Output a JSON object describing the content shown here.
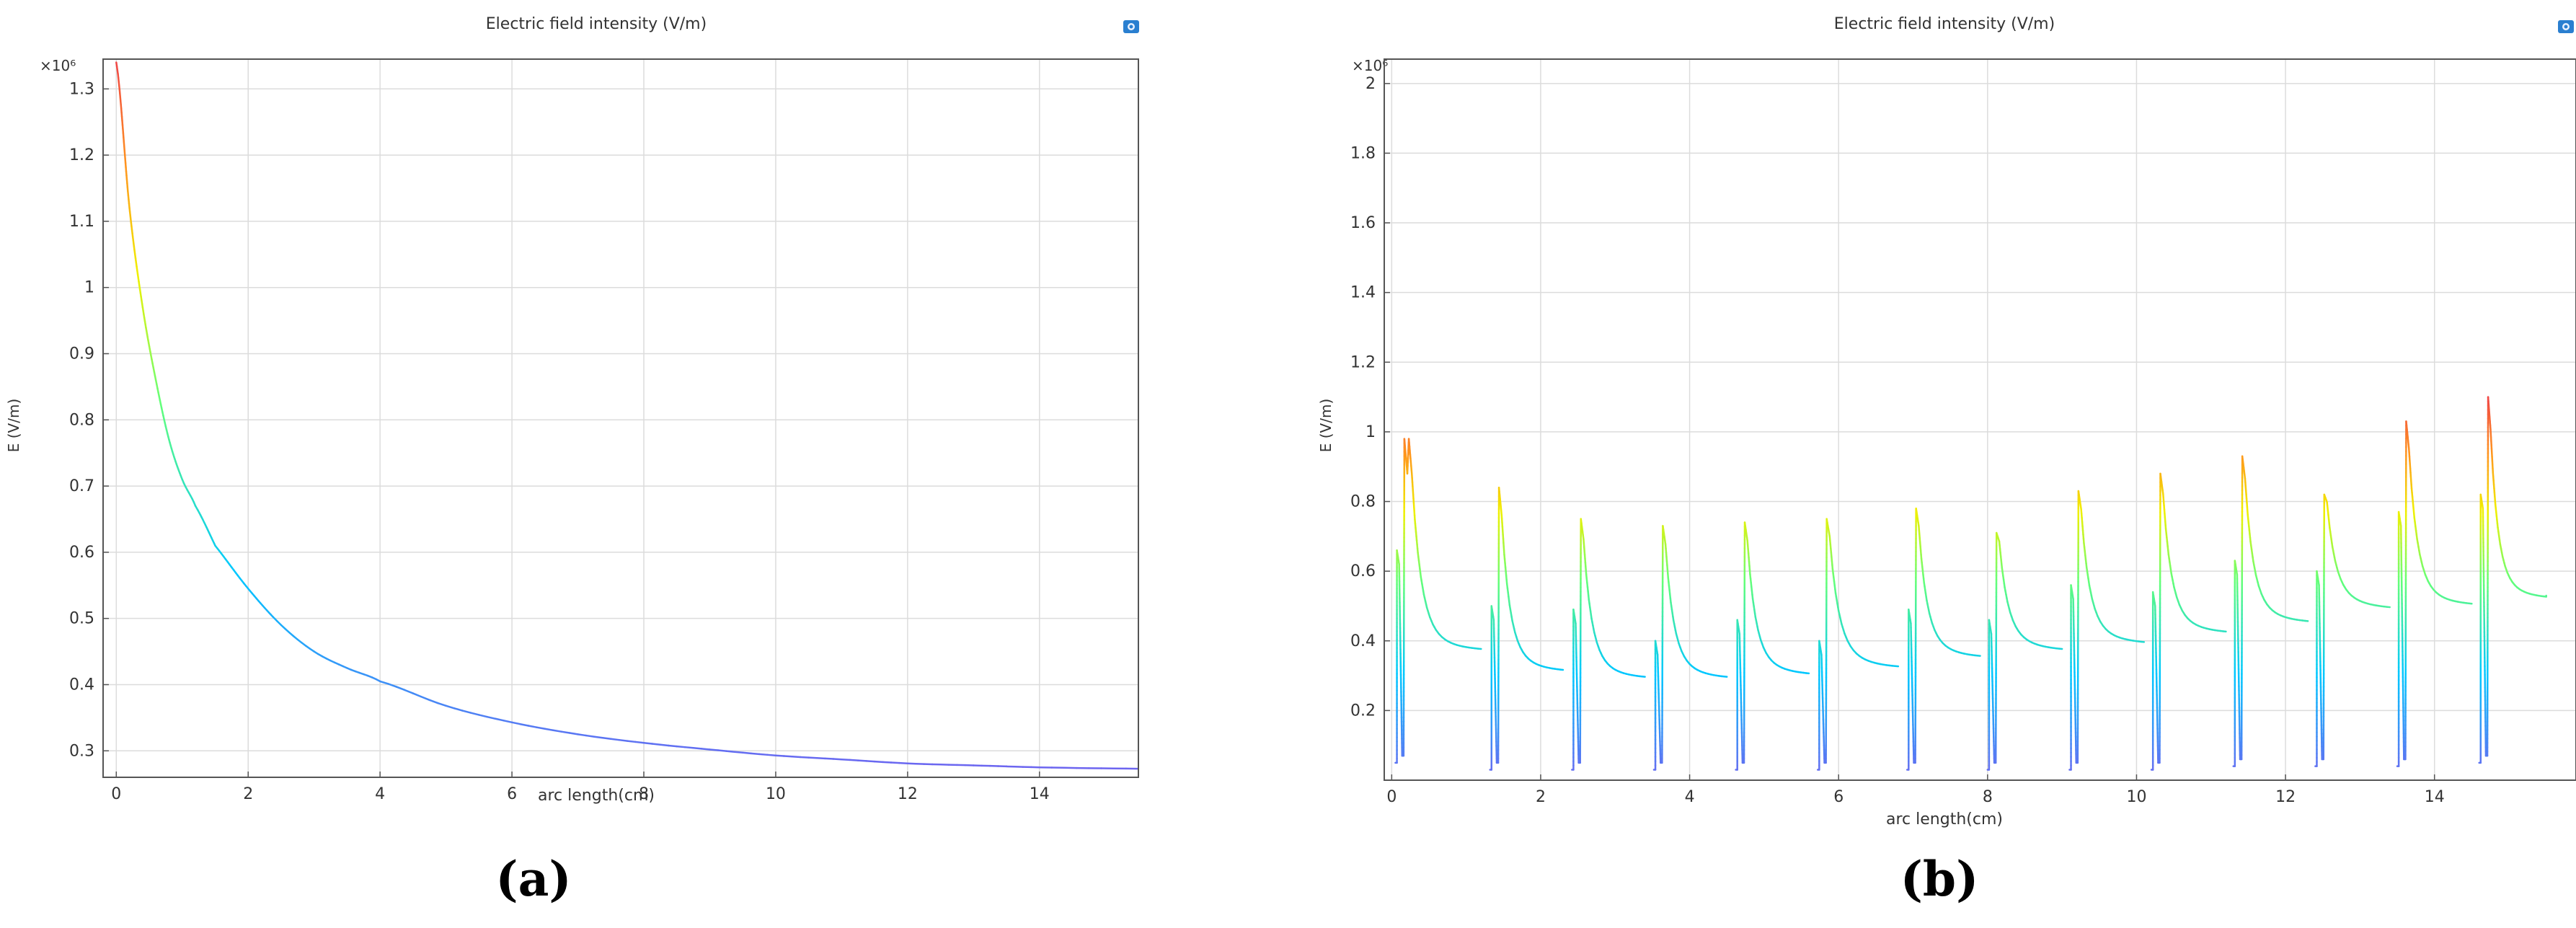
{
  "chart_data": [
    {
      "type": "line",
      "title": "Electric field intensity (V/m)",
      "xlabel": "arc length(cm)",
      "ylabel": "E (V/m)",
      "y_multiplier": "×10⁶",
      "xlim": [
        -0.2,
        15.5
      ],
      "ylim": [
        0.26,
        1.345
      ],
      "xticks": [
        0,
        2,
        4,
        6,
        8,
        10,
        12,
        14
      ],
      "yticks": [
        0.3,
        0.4,
        0.5,
        0.6,
        0.7,
        0.8,
        0.9,
        1,
        1.1,
        1.2,
        1.3
      ],
      "grid": true,
      "colormap": "rainbow",
      "series": [
        {
          "x": [
            0,
            0.2,
            0.4,
            0.6,
            0.8,
            1.0,
            1.2,
            1.5,
            2.0,
            2.5,
            3.0,
            3.5,
            4.0,
            5.0,
            6.0,
            7.0,
            8.0,
            9.0,
            10.0,
            11.0,
            12.0,
            13.0,
            14.0,
            15.5
          ],
          "y": [
            1.34,
            1.12,
            0.97,
            0.86,
            0.77,
            0.71,
            0.67,
            0.61,
            0.545,
            0.49,
            0.45,
            0.425,
            0.405,
            0.368,
            0.343,
            0.325,
            0.312,
            0.302,
            0.293,
            0.287,
            0.281,
            0.278,
            0.275,
            0.273
          ]
        }
      ]
    },
    {
      "type": "line",
      "title": "Electric field intensity (V/m)",
      "xlabel": "arc length(cm)",
      "ylabel": "E (V/m)",
      "y_multiplier": "×10⁶",
      "xlim": [
        -0.1,
        15.9
      ],
      "ylim": [
        0.0,
        2.07
      ],
      "xticks": [
        0,
        2,
        4,
        6,
        8,
        10,
        12,
        14
      ],
      "yticks": [
        0.2,
        0.4,
        0.6,
        0.8,
        1,
        1.2,
        1.4,
        1.6,
        1.8,
        2
      ],
      "grid": true,
      "colormap": "rainbow",
      "segments": [
        {
          "start": 0.05,
          "end": 1.2,
          "dip": 0.05,
          "peak": 0.98,
          "peak2": 0.98,
          "lead": 0.66,
          "base": 0.37
        },
        {
          "start": 1.32,
          "end": 2.3,
          "dip": 0.03,
          "peak": 0.84,
          "lead": 0.5,
          "base": 0.31
        },
        {
          "start": 2.42,
          "end": 3.4,
          "dip": 0.03,
          "peak": 0.75,
          "lead": 0.49,
          "base": 0.29
        },
        {
          "start": 3.52,
          "end": 4.5,
          "dip": 0.03,
          "peak": 0.73,
          "lead": 0.4,
          "base": 0.29
        },
        {
          "start": 4.62,
          "end": 5.6,
          "dip": 0.03,
          "peak": 0.74,
          "lead": 0.46,
          "base": 0.3
        },
        {
          "start": 5.72,
          "end": 6.8,
          "dip": 0.03,
          "peak": 0.75,
          "lead": 0.4,
          "base": 0.32
        },
        {
          "start": 6.92,
          "end": 7.9,
          "dip": 0.03,
          "peak": 0.78,
          "lead": 0.49,
          "base": 0.35
        },
        {
          "start": 8.0,
          "end": 9.0,
          "dip": 0.03,
          "peak": 0.71,
          "lead": 0.46,
          "base": 0.37
        },
        {
          "start": 9.1,
          "end": 10.1,
          "dip": 0.03,
          "peak": 0.83,
          "lead": 0.56,
          "base": 0.39
        },
        {
          "start": 10.2,
          "end": 11.2,
          "dip": 0.03,
          "peak": 0.88,
          "lead": 0.54,
          "base": 0.42
        },
        {
          "start": 11.3,
          "end": 12.3,
          "dip": 0.04,
          "peak": 0.93,
          "lead": 0.63,
          "base": 0.45
        },
        {
          "start": 12.4,
          "end": 13.4,
          "dip": 0.04,
          "peak": 0.82,
          "lead": 0.6,
          "base": 0.49
        },
        {
          "start": 13.5,
          "end": 14.5,
          "dip": 0.04,
          "peak": 1.03,
          "lead": 0.77,
          "base": 0.5
        },
        {
          "start": 14.6,
          "end": 15.5,
          "dip": 0.05,
          "peak": 1.1,
          "lead": 0.82,
          "base": 0.52
        }
      ]
    }
  ],
  "captions": [
    "(a)",
    "(b)"
  ],
  "icon": "camera-icon"
}
